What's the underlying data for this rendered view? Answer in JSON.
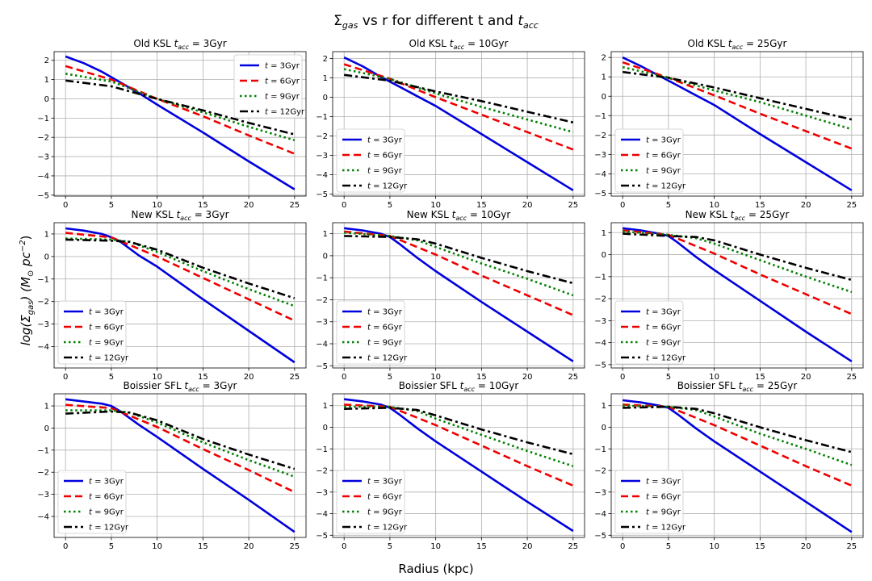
{
  "figure": {
    "suptitle_main": "Σ",
    "suptitle_main_sub": "gas",
    "suptitle_rest": " vs r for different t and ",
    "suptitle_t": "t",
    "suptitle_t_sub": "acc",
    "xlabel": "Radius (kpc)",
    "ylabel_prefix": "log(Σ",
    "ylabel_prefix_sub": "gas",
    "ylabel_mid": ") (M",
    "ylabel_mid_sub": "⊙",
    "ylabel_unit": " pc",
    "ylabel_unit_sup": "−2",
    "ylabel_end": ")"
  },
  "chart_data": {
    "type": "line",
    "xlim": [
      -1.25,
      26.25
    ],
    "x_ticks": [
      0,
      5,
      10,
      15,
      20,
      25
    ],
    "grid": true,
    "series_style": [
      {
        "label": "t = 3Gyr",
        "label_t": "t",
        "label_rest": " = 3Gyr",
        "color": "#0000dd",
        "dash": ""
      },
      {
        "label": "t = 6Gyr",
        "label_t": "t",
        "label_rest": " = 6Gyr",
        "color": "#ee0000",
        "dash": "9,5"
      },
      {
        "label": "t = 9Gyr",
        "label_t": "t",
        "label_rest": " = 9Gyr",
        "color": "#008000",
        "dash": "2.5,3.5"
      },
      {
        "label": "t = 12Gyr",
        "label_t": "t",
        "label_rest": " = 12Gyr",
        "color": "#000000",
        "dash": "10,4,3,4"
      }
    ],
    "panels": [
      {
        "row": 0,
        "col": 0,
        "title_prefix": "Old KSL ",
        "title_t": "t",
        "title_t_sub": "acc",
        "title_suffix": " = 3Gyr",
        "ylim": [
          -5.05,
          2.45
        ],
        "y_ticks": [
          -5,
          -4,
          -3,
          -2,
          -1,
          0,
          1,
          2
        ],
        "legend": "top-right",
        "series": [
          {
            "x": [
              0,
              2,
              4,
              6,
              8,
              10,
              15,
              20,
              25
            ],
            "y": [
              2.2,
              1.85,
              1.4,
              0.85,
              0.3,
              -0.3,
              -1.75,
              -3.25,
              -4.7
            ]
          },
          {
            "x": [
              0,
              5,
              10,
              15,
              20,
              25
            ],
            "y": [
              1.7,
              1.0,
              0.0,
              -0.9,
              -1.9,
              -2.85
            ]
          },
          {
            "x": [
              0,
              5,
              10,
              15,
              20,
              25
            ],
            "y": [
              1.3,
              0.9,
              0.0,
              -0.7,
              -1.45,
              -2.15
            ]
          },
          {
            "x": [
              0,
              5,
              10,
              15,
              20,
              25
            ],
            "y": [
              0.95,
              0.65,
              0.0,
              -0.6,
              -1.25,
              -1.85
            ]
          }
        ]
      },
      {
        "row": 0,
        "col": 1,
        "title_prefix": "Old KSL ",
        "title_t": "t",
        "title_t_sub": "acc",
        "title_suffix": " = 10Gyr",
        "ylim": [
          -5.1,
          2.35
        ],
        "y_ticks": [
          -5,
          -4,
          -3,
          -2,
          -1,
          0,
          1,
          2
        ],
        "legend": "lower-left",
        "series": [
          {
            "x": [
              0,
              2,
              4,
              6,
              8,
              10,
              15,
              20,
              25
            ],
            "y": [
              2.05,
              1.6,
              1.05,
              0.55,
              0.05,
              -0.45,
              -1.9,
              -3.35,
              -4.8
            ]
          },
          {
            "x": [
              0,
              5,
              10,
              15,
              20,
              25
            ],
            "y": [
              1.7,
              0.95,
              0.0,
              -0.9,
              -1.8,
              -2.7
            ]
          },
          {
            "x": [
              0,
              5,
              10,
              15,
              20,
              25
            ],
            "y": [
              1.45,
              0.95,
              0.2,
              -0.5,
              -1.15,
              -1.8
            ]
          },
          {
            "x": [
              0,
              5,
              10,
              15,
              20,
              25
            ],
            "y": [
              1.15,
              0.85,
              0.3,
              -0.2,
              -0.75,
              -1.3
            ]
          }
        ]
      },
      {
        "row": 0,
        "col": 2,
        "title_prefix": "Old KSL ",
        "title_t": "t",
        "title_t_sub": "acc",
        "title_suffix": " = 25Gyr",
        "ylim": [
          -5.15,
          2.3
        ],
        "y_ticks": [
          -5,
          -4,
          -3,
          -2,
          -1,
          0,
          1,
          2
        ],
        "legend": "lower-left",
        "series": [
          {
            "x": [
              0,
              2,
              4,
              6,
              8,
              10,
              15,
              20,
              25
            ],
            "y": [
              2.0,
              1.55,
              1.05,
              0.55,
              0.05,
              -0.45,
              -1.95,
              -3.4,
              -4.85
            ]
          },
          {
            "x": [
              0,
              5,
              10,
              15,
              20,
              25
            ],
            "y": [
              1.75,
              0.95,
              0.05,
              -0.9,
              -1.8,
              -2.7
            ]
          },
          {
            "x": [
              0,
              5,
              10,
              15,
              20,
              25
            ],
            "y": [
              1.5,
              0.95,
              0.3,
              -0.3,
              -1.0,
              -1.7
            ]
          },
          {
            "x": [
              0,
              5,
              10,
              15,
              20,
              25
            ],
            "y": [
              1.25,
              0.95,
              0.45,
              -0.1,
              -0.65,
              -1.2
            ]
          }
        ]
      },
      {
        "row": 1,
        "col": 0,
        "title_prefix": "New KSL ",
        "title_t": "t",
        "title_t_sub": "acc",
        "title_suffix": " = 3Gyr",
        "ylim": [
          -4.95,
          1.5
        ],
        "y_ticks": [
          -4,
          -3,
          -2,
          -1,
          0,
          1
        ],
        "legend": "lower-left",
        "series": [
          {
            "x": [
              0,
              2,
              4,
              5,
              6,
              8,
              10,
              15,
              20,
              25
            ],
            "y": [
              1.25,
              1.15,
              1.0,
              0.85,
              0.65,
              0.05,
              -0.45,
              -1.9,
              -3.3,
              -4.7
            ]
          },
          {
            "x": [
              0,
              5,
              10,
              15,
              20,
              25
            ],
            "y": [
              1.05,
              0.85,
              0.0,
              -0.95,
              -1.9,
              -2.85
            ]
          },
          {
            "x": [
              0,
              5,
              7,
              10,
              15,
              20,
              25
            ],
            "y": [
              0.8,
              0.75,
              0.65,
              0.2,
              -0.65,
              -1.45,
              -2.2
            ]
          },
          {
            "x": [
              0,
              5,
              7,
              10,
              15,
              20,
              25
            ],
            "y": [
              0.75,
              0.7,
              0.65,
              0.3,
              -0.5,
              -1.2,
              -1.85
            ]
          }
        ]
      },
      {
        "row": 1,
        "col": 1,
        "title_prefix": "New KSL ",
        "title_t": "t",
        "title_t_sub": "acc",
        "title_suffix": " = 10Gyr",
        "ylim": [
          -5.1,
          1.5
        ],
        "y_ticks": [
          -5,
          -4,
          -3,
          -2,
          -1,
          0,
          1
        ],
        "legend": "lower-left",
        "series": [
          {
            "x": [
              0,
              2,
              4,
              5,
              6,
              8,
              10,
              15,
              20,
              25
            ],
            "y": [
              1.25,
              1.15,
              1.0,
              0.85,
              0.55,
              -0.1,
              -0.7,
              -2.1,
              -3.45,
              -4.8
            ]
          },
          {
            "x": [
              0,
              5,
              10,
              15,
              20,
              25
            ],
            "y": [
              1.1,
              0.9,
              0.05,
              -0.9,
              -1.8,
              -2.7
            ]
          },
          {
            "x": [
              0,
              5,
              8,
              10,
              15,
              20,
              25
            ],
            "y": [
              1.05,
              0.9,
              0.7,
              0.4,
              -0.35,
              -1.05,
              -1.8
            ]
          },
          {
            "x": [
              0,
              5,
              8,
              10,
              15,
              20,
              25
            ],
            "y": [
              0.9,
              0.85,
              0.75,
              0.55,
              -0.1,
              -0.7,
              -1.25
            ]
          }
        ]
      },
      {
        "row": 1,
        "col": 2,
        "title_prefix": "New KSL ",
        "title_t": "t",
        "title_t_sub": "acc",
        "title_suffix": " = 25Gyr",
        "ylim": [
          -5.15,
          1.45
        ],
        "y_ticks": [
          -5,
          -4,
          -3,
          -2,
          -1,
          0,
          1
        ],
        "legend": "lower-left",
        "series": [
          {
            "x": [
              0,
              2,
              4,
              5,
              6,
              8,
              10,
              15,
              20,
              25
            ],
            "y": [
              1.2,
              1.1,
              0.95,
              0.85,
              0.55,
              -0.1,
              -0.7,
              -2.1,
              -3.5,
              -4.85
            ]
          },
          {
            "x": [
              0,
              5,
              10,
              15,
              20,
              25
            ],
            "y": [
              1.1,
              0.9,
              0.05,
              -0.9,
              -1.8,
              -2.7
            ]
          },
          {
            "x": [
              0,
              5,
              8,
              10,
              15,
              20,
              25
            ],
            "y": [
              1.05,
              0.9,
              0.75,
              0.5,
              -0.25,
              -1.0,
              -1.7
            ]
          },
          {
            "x": [
              0,
              5,
              8,
              10,
              15,
              20,
              25
            ],
            "y": [
              0.95,
              0.85,
              0.8,
              0.65,
              0.0,
              -0.6,
              -1.15
            ]
          }
        ]
      },
      {
        "row": 2,
        "col": 0,
        "title_prefix": "Boissier SFL ",
        "title_t": "t",
        "title_t_sub": "acc",
        "title_suffix": " = 3Gyr",
        "ylim": [
          -4.95,
          1.55
        ],
        "y_ticks": [
          -4,
          -3,
          -2,
          -1,
          0,
          1
        ],
        "legend": "lower-left",
        "series": [
          {
            "x": [
              0,
              2,
              4,
              5,
              6,
              8,
              10,
              15,
              20,
              25
            ],
            "y": [
              1.3,
              1.2,
              1.1,
              1.0,
              0.75,
              0.15,
              -0.4,
              -1.85,
              -3.25,
              -4.7
            ]
          },
          {
            "x": [
              0,
              5,
              10,
              15,
              20,
              25
            ],
            "y": [
              1.05,
              0.9,
              0.05,
              -0.95,
              -1.9,
              -2.9
            ]
          },
          {
            "x": [
              0,
              5,
              7,
              10,
              15,
              20,
              25
            ],
            "y": [
              0.8,
              0.8,
              0.7,
              0.25,
              -0.65,
              -1.45,
              -2.2
            ]
          },
          {
            "x": [
              0,
              5,
              7,
              10,
              15,
              20,
              25
            ],
            "y": [
              0.65,
              0.75,
              0.7,
              0.35,
              -0.5,
              -1.2,
              -1.85
            ]
          }
        ]
      },
      {
        "row": 2,
        "col": 1,
        "title_prefix": "Boissier SFL ",
        "title_t": "t",
        "title_t_sub": "acc",
        "title_suffix": " = 10Gyr",
        "ylim": [
          -5.1,
          1.55
        ],
        "y_ticks": [
          -5,
          -4,
          -3,
          -2,
          -1,
          0,
          1
        ],
        "legend": "lower-left",
        "series": [
          {
            "x": [
              0,
              2,
              4,
              5,
              6,
              8,
              10,
              15,
              20,
              25
            ],
            "y": [
              1.3,
              1.2,
              1.05,
              0.9,
              0.6,
              -0.05,
              -0.65,
              -2.05,
              -3.45,
              -4.8
            ]
          },
          {
            "x": [
              0,
              5,
              10,
              15,
              20,
              25
            ],
            "y": [
              1.05,
              0.95,
              0.1,
              -0.85,
              -1.8,
              -2.7
            ]
          },
          {
            "x": [
              0,
              5,
              8,
              10,
              15,
              20,
              25
            ],
            "y": [
              0.95,
              0.95,
              0.75,
              0.4,
              -0.35,
              -1.1,
              -1.8
            ]
          },
          {
            "x": [
              0,
              5,
              8,
              10,
              15,
              20,
              25
            ],
            "y": [
              0.85,
              0.9,
              0.8,
              0.55,
              -0.1,
              -0.7,
              -1.25
            ]
          }
        ]
      },
      {
        "row": 2,
        "col": 2,
        "title_prefix": "Boissier SFL ",
        "title_t": "t",
        "title_t_sub": "acc",
        "title_suffix": " = 25Gyr",
        "ylim": [
          -5.1,
          1.55
        ],
        "y_ticks": [
          -5,
          -4,
          -3,
          -2,
          -1,
          0,
          1
        ],
        "legend": "lower-left",
        "series": [
          {
            "x": [
              0,
              2,
              4,
              5,
              6,
              8,
              10,
              15,
              20,
              25
            ],
            "y": [
              1.25,
              1.15,
              1.0,
              0.9,
              0.6,
              -0.05,
              -0.65,
              -2.05,
              -3.45,
              -4.85
            ]
          },
          {
            "x": [
              0,
              5,
              10,
              15,
              20,
              25
            ],
            "y": [
              1.05,
              0.95,
              0.1,
              -0.85,
              -1.8,
              -2.7
            ]
          },
          {
            "x": [
              0,
              5,
              8,
              10,
              15,
              20,
              25
            ],
            "y": [
              1.0,
              0.95,
              0.8,
              0.5,
              -0.3,
              -1.0,
              -1.75
            ]
          },
          {
            "x": [
              0,
              5,
              8,
              10,
              15,
              20,
              25
            ],
            "y": [
              0.9,
              0.95,
              0.85,
              0.65,
              0.0,
              -0.6,
              -1.15
            ]
          }
        ]
      }
    ]
  }
}
